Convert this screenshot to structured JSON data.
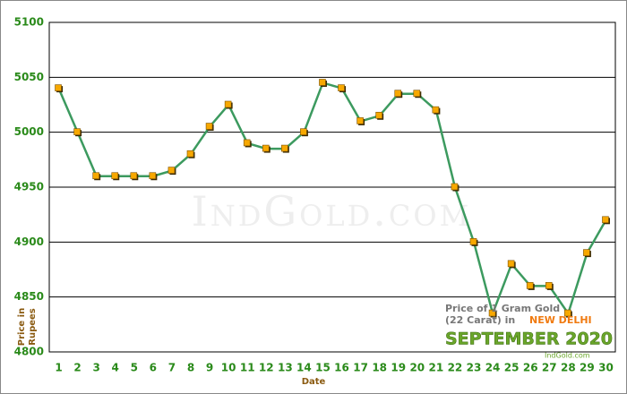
{
  "chart_data": {
    "type": "line",
    "categories": [
      "1",
      "2",
      "3",
      "4",
      "5",
      "6",
      "7",
      "8",
      "9",
      "10",
      "11",
      "12",
      "13",
      "14",
      "15",
      "16",
      "17",
      "18",
      "19",
      "20",
      "21",
      "22",
      "23",
      "24",
      "25",
      "26",
      "27",
      "28",
      "29",
      "30"
    ],
    "values": [
      5040,
      5000,
      4960,
      4960,
      4960,
      4960,
      4965,
      4980,
      5005,
      5025,
      4990,
      4985,
      4985,
      5000,
      5045,
      5040,
      5010,
      5015,
      5035,
      5035,
      5020,
      4950,
      4900,
      4835,
      4880,
      4860,
      4860,
      4835,
      4890,
      4920
    ],
    "color": "#3c9a5f",
    "marker_color": "#f7a800",
    "ylim": [
      4800,
      5100
    ],
    "yticks": [
      4800,
      4850,
      4900,
      4950,
      5000,
      5050,
      5100
    ],
    "grid": true,
    "x_label": "Date",
    "y_label": [
      "Price in",
      "Rupees"
    ],
    "watermark": "IndGold.com",
    "annotation": {
      "line1": "Price of 1 Gram Gold",
      "line2": "(22 Carat) in",
      "city": "NEW DELHI",
      "period": "SEPTEMBER 2020",
      "site": "IndGold.com"
    }
  }
}
